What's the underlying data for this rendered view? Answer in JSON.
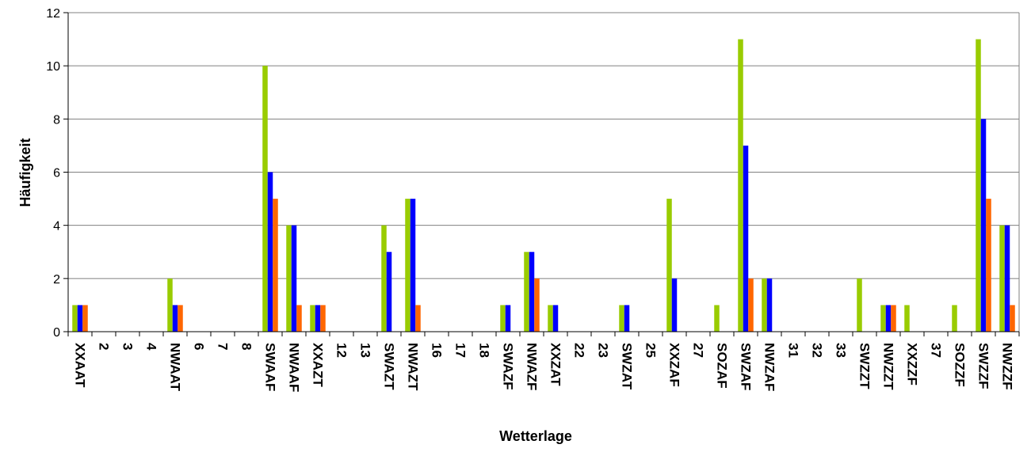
{
  "chart_data": {
    "type": "bar",
    "xlabel": "Wetterlage",
    "ylabel": "Häufigkeit",
    "ylim": [
      0,
      12
    ],
    "yticks": [
      0,
      2,
      4,
      6,
      8,
      10,
      12
    ],
    "grid": "horizontal",
    "legend": "none",
    "categories": [
      "XXAAT",
      "2",
      "3",
      "4",
      "NWAAT",
      "6",
      "7",
      "8",
      "SWAAF",
      "NWAAF",
      "XXAZT",
      "12",
      "13",
      "SWAZT",
      "NWAZT",
      "16",
      "17",
      "18",
      "SWAZF",
      "NWAZF",
      "XXZAT",
      "22",
      "23",
      "SWZAT",
      "25",
      "XXZAF",
      "27",
      "SOZAF",
      "SWZAF",
      "NWZAF",
      "31",
      "32",
      "33",
      "SWZZT",
      "NWZZT",
      "XXZZF",
      "37",
      "SOZZF",
      "SWZZF",
      "NWZZF"
    ],
    "series": [
      {
        "color": "#99cc00",
        "values": [
          1,
          0,
          0,
          0,
          2,
          0,
          0,
          0,
          10,
          4,
          1,
          0,
          0,
          4,
          5,
          0,
          0,
          0,
          1,
          3,
          1,
          0,
          0,
          1,
          0,
          5,
          0,
          1,
          11,
          2,
          0,
          0,
          0,
          2,
          1,
          1,
          0,
          1,
          11,
          4
        ]
      },
      {
        "color": "#0000ff",
        "values": [
          1,
          0,
          0,
          0,
          1,
          0,
          0,
          0,
          6,
          4,
          1,
          0,
          0,
          3,
          5,
          0,
          0,
          0,
          1,
          3,
          1,
          0,
          0,
          1,
          0,
          2,
          0,
          0,
          7,
          2,
          0,
          0,
          0,
          0,
          1,
          0,
          0,
          0,
          8,
          4
        ]
      },
      {
        "color": "#ff6600",
        "values": [
          1,
          0,
          0,
          0,
          1,
          0,
          0,
          0,
          5,
          1,
          1,
          0,
          0,
          0,
          1,
          0,
          0,
          0,
          0,
          2,
          0,
          0,
          0,
          0,
          0,
          0,
          0,
          0,
          2,
          0,
          0,
          0,
          0,
          0,
          1,
          0,
          0,
          0,
          5,
          1
        ]
      }
    ]
  }
}
